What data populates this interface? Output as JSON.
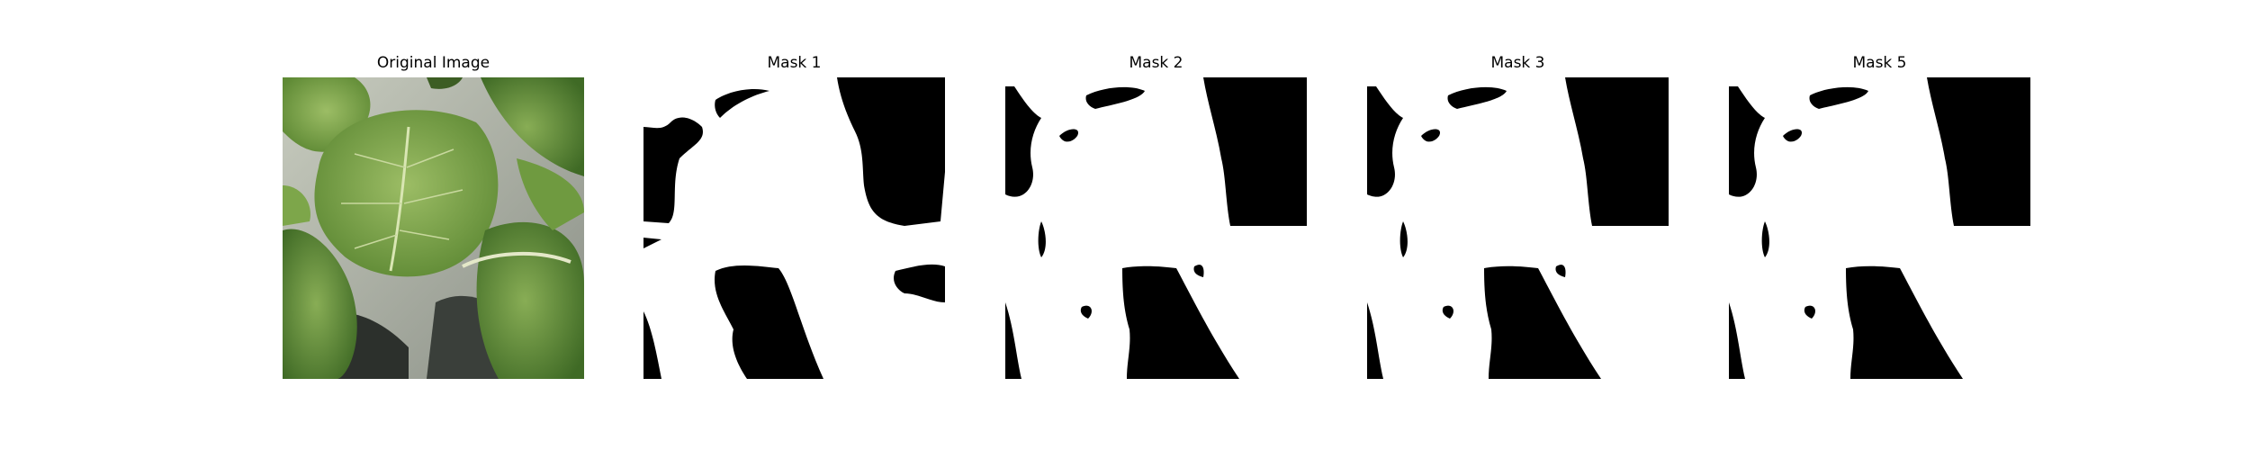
{
  "figure": {
    "panels": [
      {
        "title": "Original Image"
      },
      {
        "title": "Mask 1"
      },
      {
        "title": "Mask 2"
      },
      {
        "title": "Mask 3"
      },
      {
        "title": "Mask 5"
      }
    ]
  },
  "colors": {
    "background": "#ffffff",
    "mask_foreground": "#ffffff",
    "mask_background": "#000000",
    "leaf_light": "#8fb35a",
    "leaf_dark": "#4d7a2c",
    "shadow": "#2a2f2a"
  }
}
